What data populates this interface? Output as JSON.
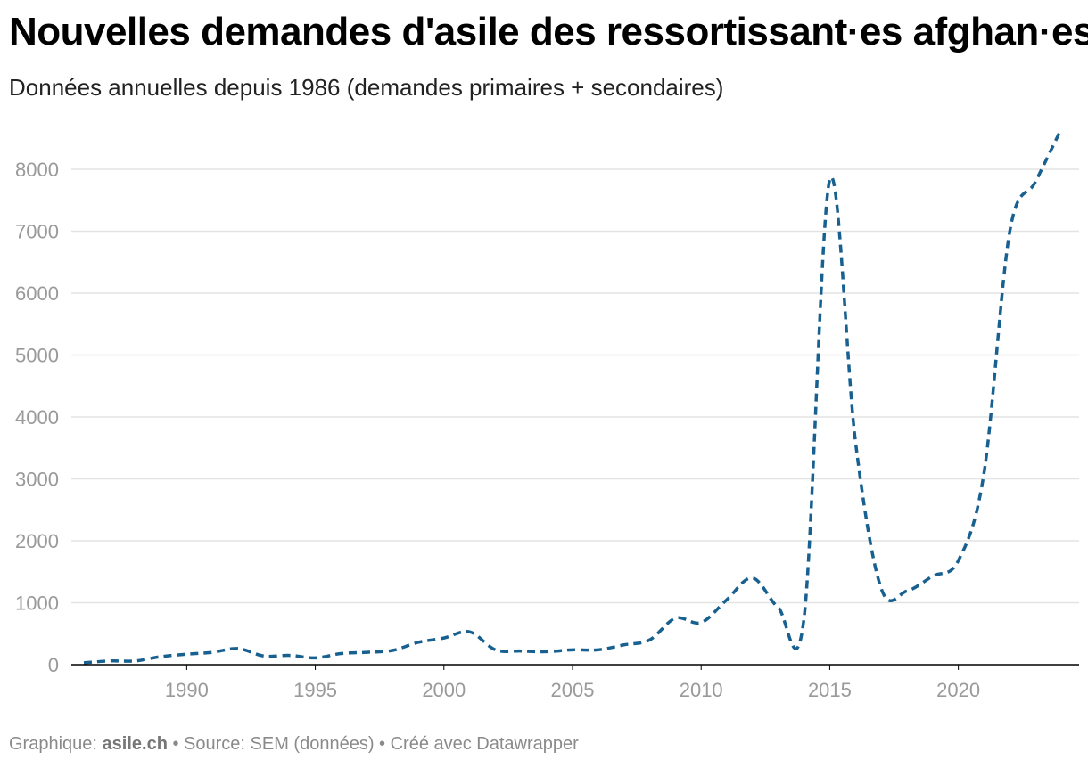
{
  "header": {
    "title": "Nouvelles demandes d'asile des ressortissant·es afghan·es",
    "subtitle": "Données annuelles depuis 1986 (demandes primaires + secondaires)"
  },
  "footer": {
    "prefix": "Graphique:",
    "brand": "asile.ch",
    "rest": "• Source: SEM (données) • Créé avec Datawrapper"
  },
  "colors": {
    "line": "#17608f",
    "grid": "#e3e3e3",
    "axis": "#000000",
    "tick": "#9a9a9a"
  },
  "chart_data": {
    "type": "line",
    "title": "Nouvelles demandes d'asile des ressortissant·es afghan·es",
    "subtitle": "Données annuelles depuis 1986 (demandes primaires + secondaires)",
    "xlabel": "",
    "ylabel": "",
    "xlim": [
      1986,
      2024
    ],
    "ylim": [
      0,
      8700
    ],
    "x_ticks": [
      1990,
      1995,
      2000,
      2005,
      2010,
      2015,
      2020
    ],
    "y_ticks": [
      0,
      1000,
      2000,
      3000,
      4000,
      5000,
      6000,
      7000,
      8000
    ],
    "grid": true,
    "line_style": "dashed",
    "series": [
      {
        "name": "Nouvelles demandes d'asile",
        "x": [
          1986,
          1987,
          1988,
          1989,
          1990,
          1991,
          1992,
          1993,
          1994,
          1995,
          1996,
          1997,
          1998,
          1999,
          2000,
          2001,
          2002,
          2003,
          2004,
          2005,
          2006,
          2007,
          2008,
          2009,
          2010,
          2011,
          2012,
          2013,
          2014,
          2015,
          2016,
          2017,
          2018,
          2019,
          2020,
          2021,
          2022,
          2023,
          2024
        ],
        "values": [
          30,
          60,
          60,
          130,
          170,
          200,
          260,
          140,
          150,
          110,
          180,
          200,
          230,
          360,
          430,
          530,
          240,
          220,
          210,
          240,
          240,
          320,
          400,
          750,
          680,
          1050,
          1400,
          920,
          750,
          7830,
          3600,
          1230,
          1190,
          1430,
          1680,
          3100,
          7000,
          7800,
          8650
        ]
      }
    ]
  }
}
